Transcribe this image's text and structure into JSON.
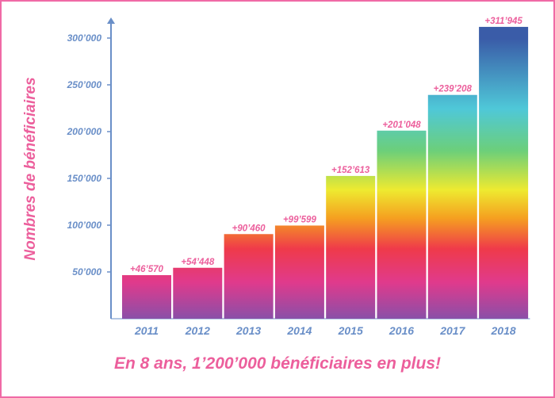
{
  "chart_data": {
    "type": "bar",
    "categories": [
      "2011",
      "2012",
      "2013",
      "2014",
      "2015",
      "2016",
      "2017",
      "2018"
    ],
    "values": [
      46570,
      54448,
      90460,
      99599,
      152613,
      201048,
      239208,
      311945
    ],
    "data_labels": [
      "+46’570",
      "+54’448",
      "+90’460",
      "+99’599",
      "+152’613",
      "+201’048",
      "+239’208",
      "+311’945"
    ],
    "ylabel": "Nombres de bénéficiaires",
    "ylim": [
      0,
      330000
    ],
    "yticks": [
      50000,
      100000,
      150000,
      200000,
      250000,
      300000
    ],
    "ytick_labels": [
      "50’000",
      "100’000",
      "150’000",
      "200’000",
      "250’000",
      "300’000"
    ],
    "xlabel": "",
    "grid": false,
    "colors": {
      "axis": "#6a8fc8",
      "text_accent": "#ec5f9c",
      "gradient": [
        "#8a4fa8",
        "#e03a8c",
        "#ef3a4a",
        "#f5a020",
        "#eeea30",
        "#6ccf7a",
        "#4fc8d8",
        "#3a5ca8"
      ]
    }
  },
  "footer": {
    "subtitle": "En 8 ans, 1’200’000 bénéficiaires en plus!"
  }
}
